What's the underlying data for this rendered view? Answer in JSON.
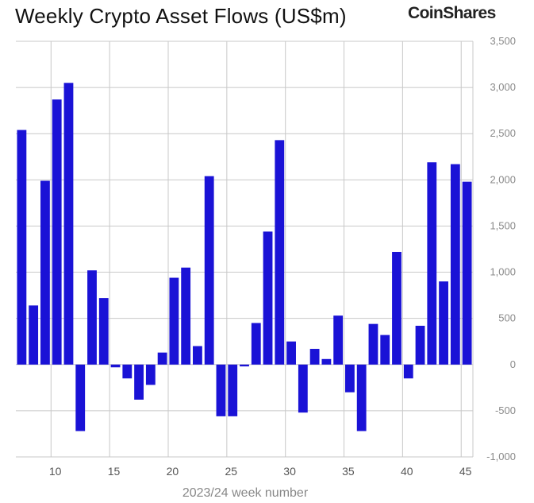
{
  "header": {
    "title": "Weekly Crypto Asset Flows (US$m)",
    "brand": "CoinShares"
  },
  "colors": {
    "bar": "#1a12d6",
    "grid": "#c8c8c8",
    "zero_line": "#8a8a8a"
  },
  "chart_data": {
    "type": "bar",
    "title": "Weekly Crypto Asset Flows (US$m)",
    "xlabel": "2023/24 week number",
    "ylabel": "",
    "grid": true,
    "ylim": [
      -1000,
      3500
    ],
    "xlim": [
      6.5,
      45.5
    ],
    "y_axis_position": "right",
    "yticks": [
      3500,
      3000,
      2500,
      2000,
      1500,
      1000,
      500,
      0,
      -500,
      -1000
    ],
    "ytick_labels": [
      "3,500",
      "3,000",
      "2,500",
      "2,000",
      "1,500",
      "1,000",
      "500",
      "0",
      "-500",
      "-1,000"
    ],
    "xticks": [
      10,
      15,
      20,
      25,
      30,
      35,
      40,
      45
    ],
    "xtick_labels": [
      "10",
      "15",
      "20",
      "25",
      "30",
      "35",
      "40",
      "45"
    ],
    "x": [
      7,
      8,
      9,
      10,
      11,
      12,
      13,
      14,
      15,
      16,
      17,
      18,
      19,
      20,
      21,
      22,
      23,
      24,
      25,
      26,
      27,
      28,
      29,
      30,
      31,
      32,
      33,
      34,
      35,
      36,
      37,
      38,
      39,
      40,
      41,
      42,
      43,
      44,
      45
    ],
    "values": [
      2540,
      640,
      1990,
      2870,
      3050,
      -720,
      1020,
      720,
      -30,
      -150,
      -380,
      -220,
      130,
      940,
      1050,
      200,
      2040,
      -560,
      -560,
      -20,
      450,
      1440,
      2430,
      250,
      -520,
      170,
      60,
      530,
      -300,
      -720,
      440,
      320,
      1220,
      -150,
      420,
      2190,
      900,
      2170,
      1980
    ]
  }
}
